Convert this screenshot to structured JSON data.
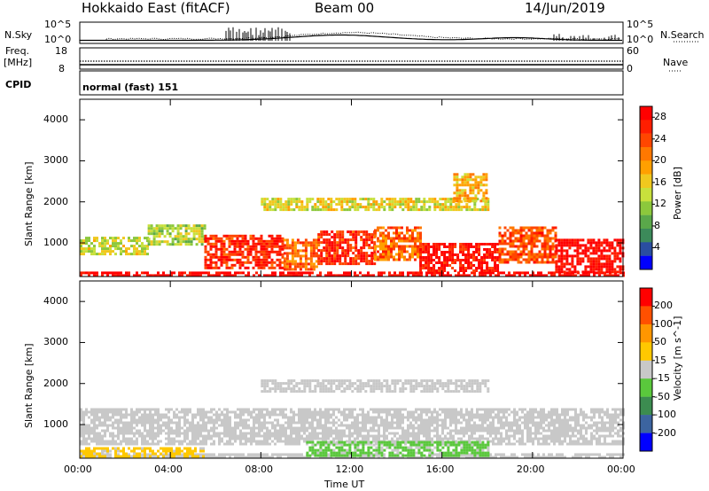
{
  "header": {
    "radar": "Hokkaido East (fitACF)",
    "beam": "Beam 00",
    "date": "14/Jun/2019"
  },
  "top_panels": {
    "nsky_label": "N.Sky",
    "nsky_ticks": [
      "10^5",
      "10^0"
    ],
    "nsearch_ticks": [
      "10^5",
      "10^0"
    ],
    "nsearch_label": "N.Search",
    "freq_label_1": "Freq.",
    "freq_label_2": "[MHz]",
    "freq_ticks": [
      "18",
      "8"
    ],
    "nave_ticks": [
      "60",
      "0"
    ],
    "nave_label": "Nave",
    "cpid_label": "CPID",
    "cpid_value": "normal (fast) 151"
  },
  "chart_data": [
    {
      "type": "heatmap",
      "title": "",
      "xlabel": "Time UT",
      "ylabel": "Slant Range [km]",
      "x_ticks": [
        "00:00",
        "04:00",
        "08:00",
        "12:00",
        "16:00",
        "20:00",
        "00:00"
      ],
      "x_range_hours": [
        0,
        24
      ],
      "y_ticks": [
        "1000",
        "2000",
        "3000",
        "4000"
      ],
      "y_range_km": [
        180,
        4500
      ],
      "colorbar": {
        "label": "Power [dB]",
        "ticks": [
          "4",
          "8",
          "12",
          "16",
          "20",
          "24",
          "28"
        ],
        "range": [
          0,
          30
        ],
        "colors": [
          "#0000ff",
          "#2a4ea0",
          "#3c8a5a",
          "#5aa84a",
          "#8cc83c",
          "#c8e03c",
          "#f0c81e",
          "#ffa000",
          "#ff7800",
          "#ff4600",
          "#ff1e00",
          "#ff0000"
        ]
      },
      "regions": [
        {
          "t": [
            0.0,
            24.0
          ],
          "r": [
            180,
            300
          ],
          "level": 29
        },
        {
          "t": [
            0.0,
            3.0
          ],
          "r": [
            700,
            1150
          ],
          "level": 14
        },
        {
          "t": [
            3.0,
            5.5
          ],
          "r": [
            950,
            1450
          ],
          "level": 13
        },
        {
          "t": [
            5.5,
            9.0
          ],
          "r": [
            400,
            1200
          ],
          "level": 26
        },
        {
          "t": [
            9.0,
            10.5
          ],
          "r": [
            350,
            1100
          ],
          "level": 22
        },
        {
          "t": [
            10.5,
            13.0
          ],
          "r": [
            500,
            1300
          ],
          "level": 26
        },
        {
          "t": [
            13.0,
            15.0
          ],
          "r": [
            600,
            1400
          ],
          "level": 22
        },
        {
          "t": [
            15.0,
            18.5
          ],
          "r": [
            300,
            1000
          ],
          "level": 28
        },
        {
          "t": [
            18.5,
            21.0
          ],
          "r": [
            500,
            1400
          ],
          "level": 24
        },
        {
          "t": [
            21.0,
            24.0
          ],
          "r": [
            300,
            1100
          ],
          "level": 29
        },
        {
          "t": [
            8.0,
            18.0
          ],
          "r": [
            1800,
            2100
          ],
          "level": 15
        },
        {
          "t": [
            16.5,
            18.0
          ],
          "r": [
            2000,
            2700
          ],
          "level": 18
        }
      ]
    },
    {
      "type": "heatmap",
      "title": "",
      "xlabel": "Time UT",
      "ylabel": "Slant Range [km]",
      "x_ticks": [
        "00:00",
        "04:00",
        "08:00",
        "12:00",
        "16:00",
        "20:00",
        "00:00"
      ],
      "x_range_hours": [
        0,
        24
      ],
      "y_ticks": [
        "1000",
        "2000",
        "3000",
        "4000"
      ],
      "y_range_km": [
        180,
        4500
      ],
      "colorbar": {
        "label": "Velocity [m s^-1]",
        "ticks": [
          "200",
          "100",
          "50",
          "15",
          "-15",
          "-50",
          "-100",
          "-200"
        ],
        "range": [
          -250,
          250
        ],
        "colors": [
          "#0000ff",
          "#3c64a0",
          "#3c8c50",
          "#5ac83c",
          "#c8c8c8",
          "#ffc800",
          "#ff9600",
          "#ff5000",
          "#ff0000"
        ]
      },
      "regions": [
        {
          "t": [
            0.0,
            24.0
          ],
          "r": [
            180,
            300
          ],
          "level": 5
        },
        {
          "t": [
            0.0,
            5.5
          ],
          "r": [
            250,
            450
          ],
          "level": 40
        },
        {
          "t": [
            0.0,
            24.0
          ],
          "r": [
            500,
            1400
          ],
          "level": 0
        },
        {
          "t": [
            10.0,
            18.0
          ],
          "r": [
            250,
            600
          ],
          "level": -40
        },
        {
          "t": [
            8.0,
            18.0
          ],
          "r": [
            1800,
            2100
          ],
          "level": 0
        }
      ]
    }
  ]
}
